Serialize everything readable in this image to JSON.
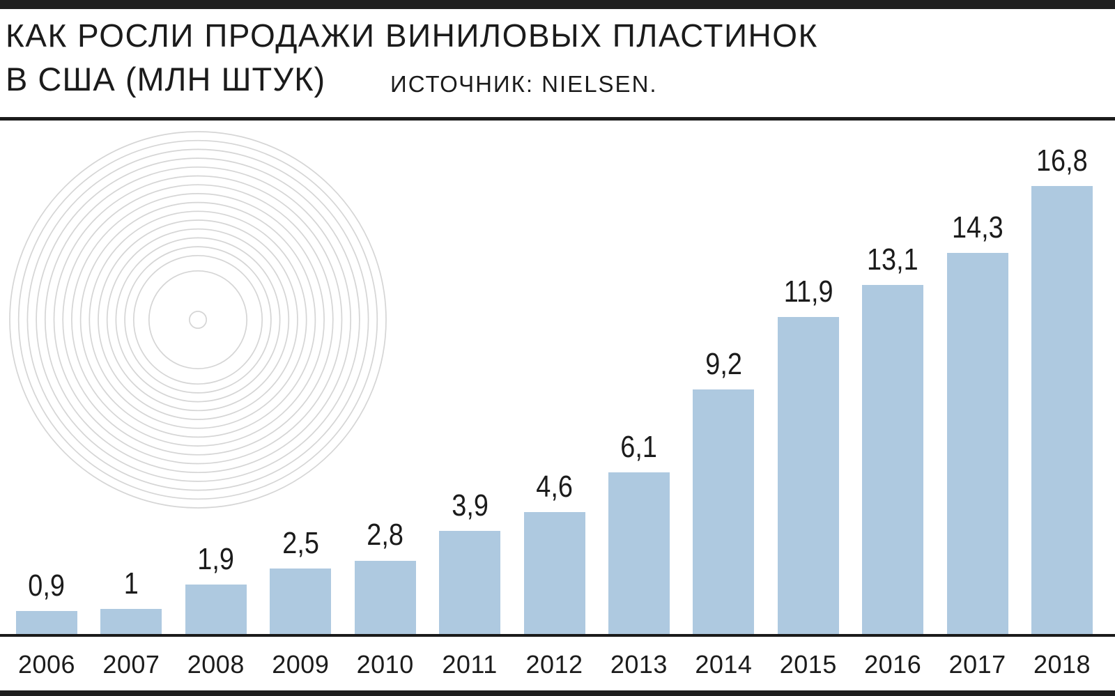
{
  "page": {
    "background": "#ffffff",
    "top_bar_color": "#1f1f1f",
    "bottom_bar_color": "#1f1f1f",
    "rule_color": "#1c1c1c",
    "text_color": "#1b1b1b"
  },
  "header": {
    "title_line1": "КАК РОСЛИ ПРОДАЖИ ВИНИЛОВЫХ ПЛАСТИНОК",
    "title_line2": "В США (МЛН ШТУК)",
    "source": "ИСТОЧНИК: NIELSEN."
  },
  "chart_data": {
    "type": "bar",
    "title": "КАК РОСЛИ ПРОДАЖИ ВИНИЛОВЫХ ПЛАСТИНОК В США (МЛН ШТУК)",
    "source": "ИСТОЧНИК: NIELSEN.",
    "unit": "млн штук",
    "categories": [
      "2006",
      "2007",
      "2008",
      "2009",
      "2010",
      "2011",
      "2012",
      "2013",
      "2014",
      "2015",
      "2016",
      "2017",
      "2018"
    ],
    "values": [
      0.9,
      1,
      1.9,
      2.5,
      2.8,
      3.9,
      4.6,
      6.1,
      9.2,
      11.9,
      13.1,
      14.3,
      16.8
    ],
    "value_labels": [
      "0,9",
      "1",
      "1,9",
      "2,5",
      "2,8",
      "3,9",
      "4,6",
      "6,1",
      "9,2",
      "11,9",
      "13,1",
      "14,3",
      "16,8"
    ],
    "bar_color": "#aec9e0",
    "label_color": "#1b1b1b",
    "axis_line_color": "#1a1a1a",
    "ylim": [
      0,
      17.5
    ],
    "grid": false,
    "legend": false,
    "value_labels_position": "above bars",
    "x_axis_position": "bottom"
  },
  "decor": {
    "vinyl_icon": "vinyl-record",
    "ring_color": "#d5d5d5",
    "groove_rings": 15,
    "label_ring_radius_ratio": 0.26,
    "hole_radius_ratio": 0.045
  }
}
